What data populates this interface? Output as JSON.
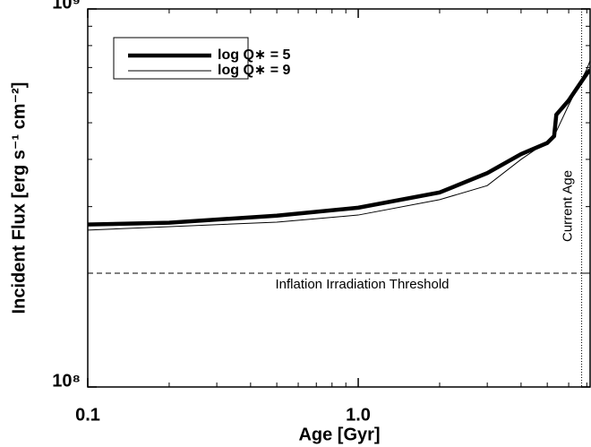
{
  "chart_data": {
    "type": "line",
    "xlabel": "Age [Gyr]",
    "ylabel": "Incident Flux [erg s⁻¹ cm⁻²]",
    "xlog": true,
    "ylog": true,
    "xlim": [
      0.1,
      7.2
    ],
    "ylim": [
      100000000,
      1000000000
    ],
    "xticks": [
      0.1,
      {
        "value": 1,
        "label": "1.0"
      }
    ],
    "yticks": [
      {
        "value": 100000000,
        "label": "10⁸"
      },
      {
        "value": 1000000000,
        "label": "10⁹"
      }
    ],
    "xticks_minor": [
      0.2,
      0.3,
      0.4,
      0.5,
      0.6,
      0.7,
      0.8,
      0.9,
      2,
      3,
      4,
      5,
      6,
      7
    ],
    "yticks_minor": [
      200000000,
      300000000,
      400000000,
      500000000,
      600000000,
      700000000,
      800000000,
      900000000
    ],
    "legend": "upper left",
    "series": [
      {
        "name": "log Q∗ = 5",
        "color": "#000000",
        "linewidth": 4.5,
        "x": [
          0.1,
          0.2,
          0.5,
          1.0,
          2.0,
          3.0,
          4.0,
          5.0,
          5.3,
          5.4,
          6.0,
          7.0,
          7.2
        ],
        "values": [
          269000000,
          272000000,
          284000000,
          298000000,
          327000000,
          368000000,
          413000000,
          442000000,
          461000000,
          525000000,
          573000000,
          674000000,
          690000000
        ]
      },
      {
        "name": "log Q∗ = 9",
        "color": "#000000",
        "linewidth": 1,
        "x": [
          0.1,
          0.5,
          1.0,
          2.0,
          3.0,
          4.0,
          5.0,
          5.3,
          6.0,
          7.0,
          7.2
        ],
        "values": [
          260000000,
          273000000,
          285000000,
          313000000,
          341000000,
          400000000,
          446000000,
          461000000,
          557000000,
          693000000,
          730000000
        ]
      }
    ],
    "threshold": {
      "value": 200000000,
      "label": "Inflation Irradiation Threshold"
    },
    "current_age": {
      "value": 6.7,
      "label": "Current  Age"
    }
  }
}
